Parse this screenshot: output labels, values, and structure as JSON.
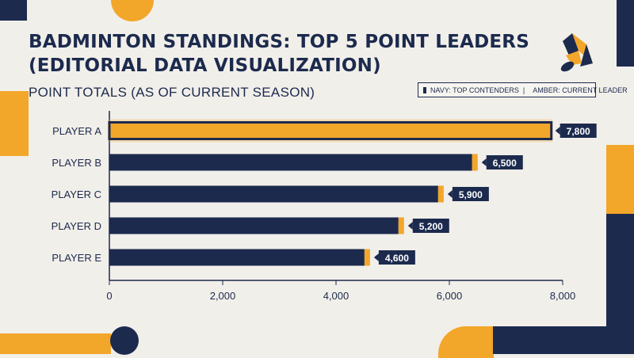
{
  "title": "BADMINTON STANDINGS: TOP 5 POINT LEADERS (EDITORIAL DATA VISUALIZATION)",
  "subtitle": "POINT TOTALS (AS OF CURRENT SEASON)",
  "legend": {
    "navy_label": "NAVY: TOP CONTENDERS",
    "separator": "|",
    "amber_label": "AMBER: CURRENT LEADER"
  },
  "colors": {
    "navy": "#1c2a4e",
    "amber": "#f2a62a",
    "background": "#f1efe9"
  },
  "logo_icon": "shuttlecock-icon",
  "chart_data": {
    "type": "bar",
    "orientation": "horizontal",
    "categories": [
      "PLAYER A",
      "PLAYER B",
      "PLAYER C",
      "PLAYER D",
      "PLAYER E"
    ],
    "values": [
      7800,
      6500,
      5900,
      5200,
      4600
    ],
    "value_labels": [
      "7,800",
      "6,500",
      "5,900",
      "5,200",
      "4,600"
    ],
    "highlight_index": 0,
    "xlim": [
      0,
      8000
    ],
    "xticks": [
      0,
      2000,
      4000,
      6000,
      8000
    ],
    "xtick_labels": [
      "0",
      "2,000",
      "4,000",
      "6,000",
      "8,000"
    ],
    "grid": false
  }
}
